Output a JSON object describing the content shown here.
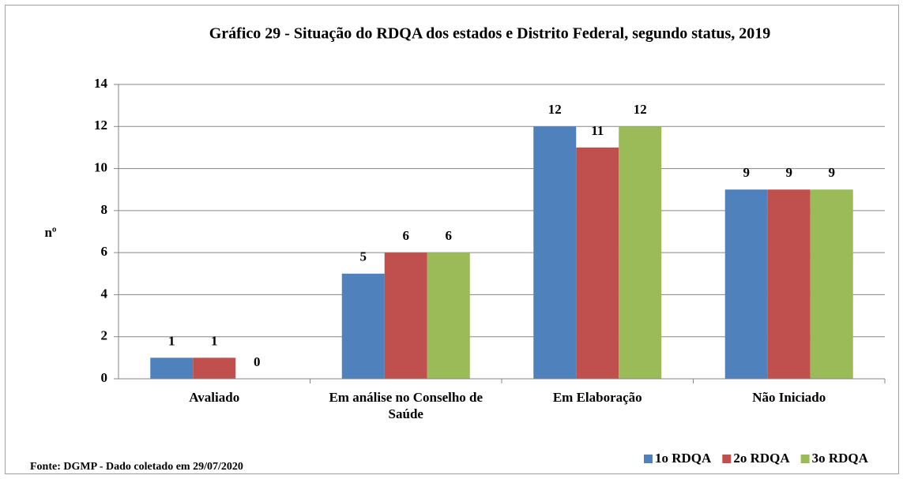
{
  "chart_data": {
    "type": "bar",
    "title": "Gráfico 29 - Situação do RDQA dos estados e  Distrito Federal,  segundo status,  2019",
    "y_label": "nº",
    "source": "Fonte:  DGMP - Dado coletado em 29/07/2020",
    "categories": [
      "Avaliado",
      "Em análise no Conselho de Saúde",
      "Em Elaboração",
      "Não Iniciado"
    ],
    "series": [
      {
        "name": "1o RDQA",
        "color": "#4f81bd",
        "values": [
          1,
          5,
          12,
          9
        ]
      },
      {
        "name": "2o RDQA",
        "color": "#c0504d",
        "values": [
          1,
          6,
          11,
          9
        ]
      },
      {
        "name": "3o RDQA",
        "color": "#9bbb59",
        "values": [
          0,
          6,
          12,
          9
        ]
      }
    ],
    "ylim": [
      0,
      14
    ],
    "yticks": [
      0,
      2,
      4,
      6,
      8,
      10,
      12,
      14
    ],
    "grid": true,
    "legend": "bottom-right"
  }
}
